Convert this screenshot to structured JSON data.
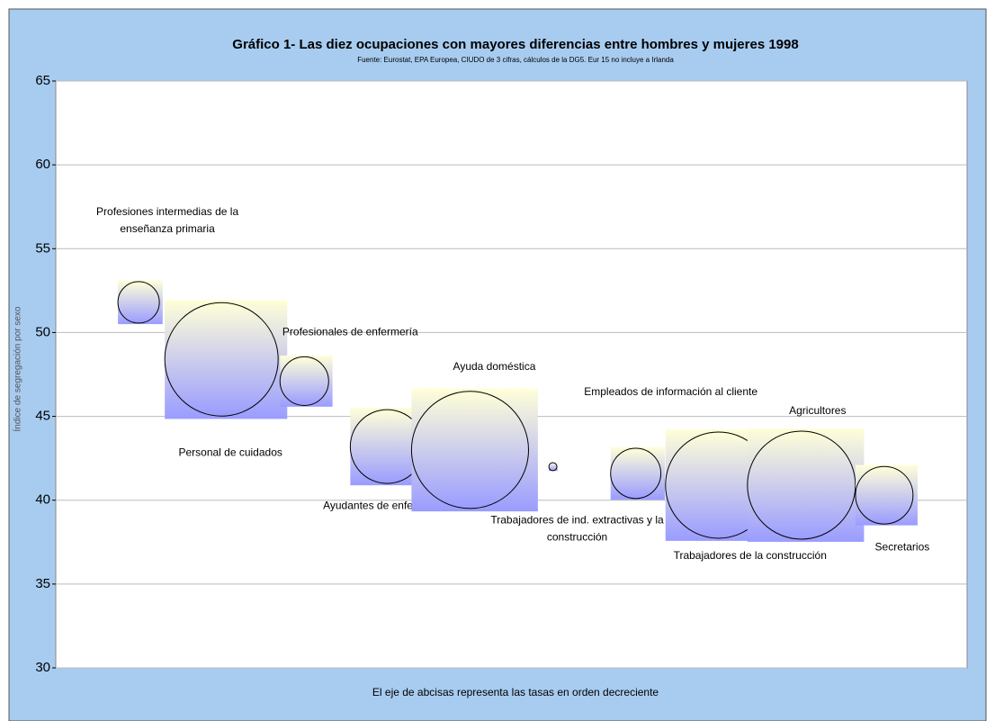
{
  "chart_data": {
    "type": "bubble",
    "title": "Gráfico 1- Las diez ocupaciones con mayores diferencias entre hombres y mujeres 1998",
    "subtitle": "Fuente: Eurostat, EPA Europea, CIUDO de 3 cifras, cálculos de la DG5. Eur 15 no incluye a Irlanda",
    "x_label": "El eje de abcisas representa las tasas en orden decreciente",
    "y_label": "Índice de segregación por sexo",
    "categories": [
      [
        "Profesiones intermedias de la",
        "enseñanza primaria"
      ],
      [
        "Personal de cuidados"
      ],
      [
        "Profesionales de enfermería"
      ],
      [
        "Ayudantes de enfermería"
      ],
      [
        "Ayuda doméstica"
      ],
      [
        "Trabajadores de ind. extractivas y la",
        "construcción"
      ],
      [
        "Empleados de información al cliente"
      ],
      [
        "Trabajadores de la construcción"
      ],
      [
        "Agricultores"
      ],
      [
        "Secretarios"
      ]
    ],
    "x": [
      1,
      2,
      3,
      4,
      5,
      6,
      7,
      8,
      9,
      10
    ],
    "values": [
      51.8,
      48.4,
      47.1,
      43.2,
      43.0,
      42.0,
      41.6,
      40.9,
      40.9,
      40.3
    ],
    "sizes": [
      5.3,
      39.7,
      7.3,
      16.8,
      42.3,
      0.2,
      7.8,
      34.8,
      36.0,
      10.2
    ],
    "xlim": [
      0,
      11
    ],
    "ylim": [
      30,
      65
    ],
    "yticks": [
      30,
      35,
      40,
      45,
      50,
      55,
      60,
      65
    ],
    "grid": true
  }
}
